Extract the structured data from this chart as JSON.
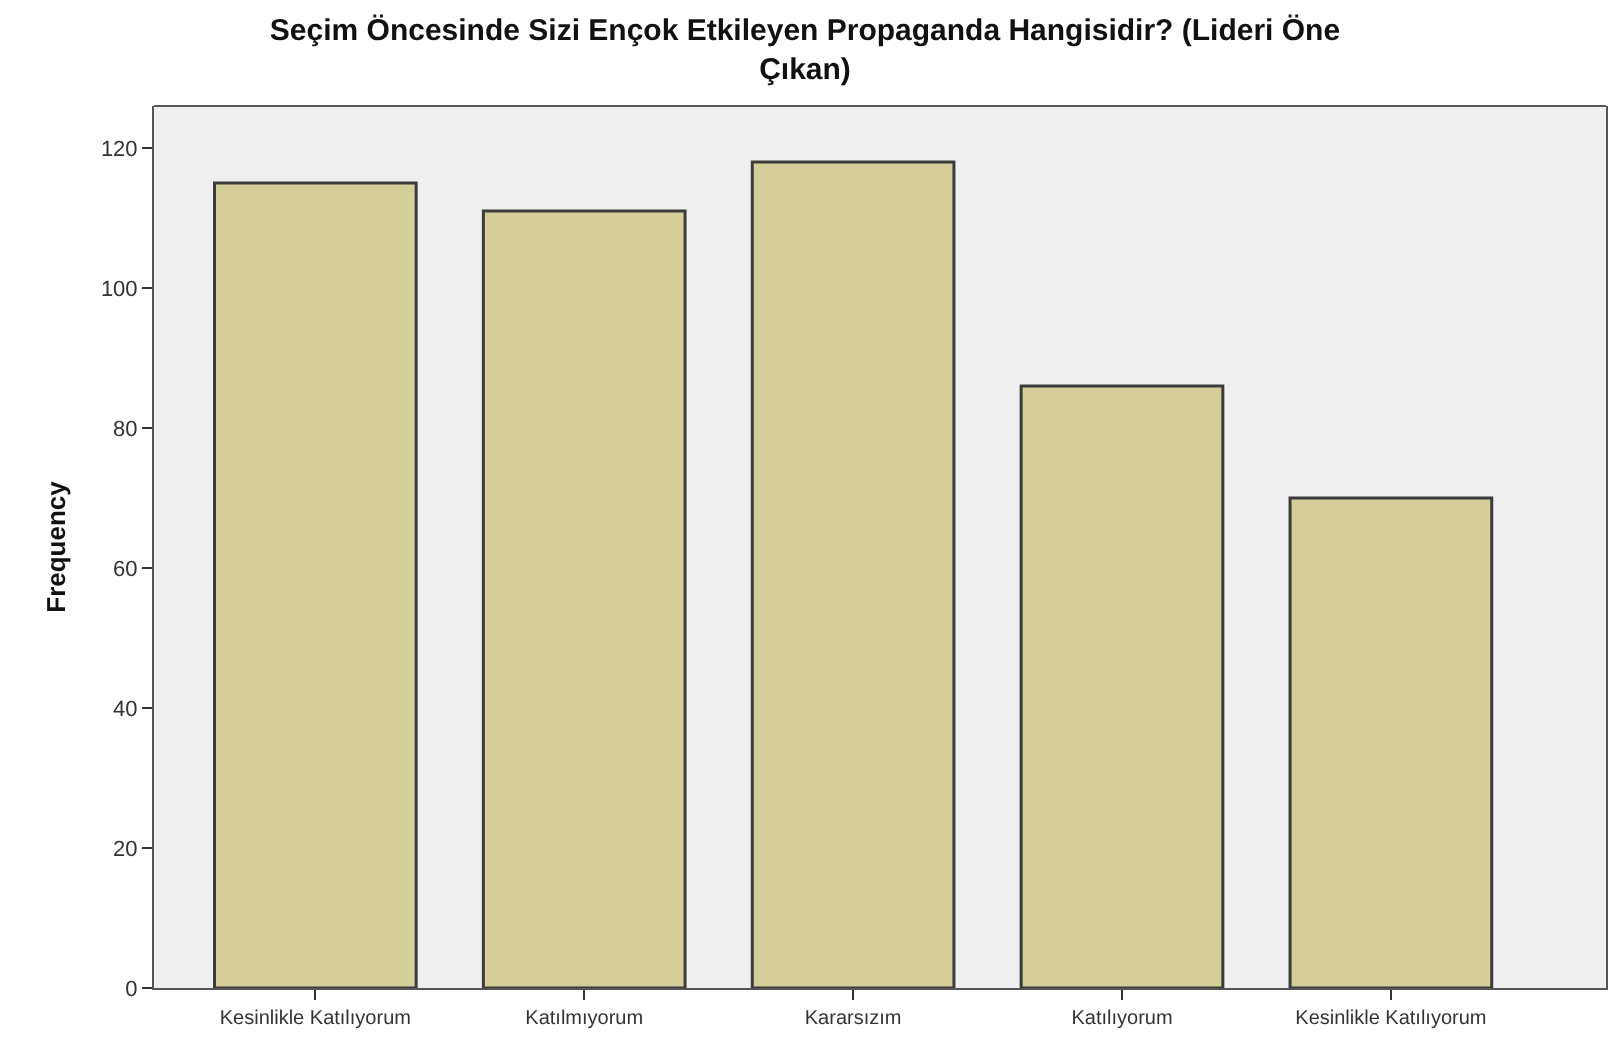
{
  "chart_data": {
    "type": "bar",
    "title": "Seçim Öncesinde Sizi Ençok Etkileyen Propaganda Hangisidir? (Lideri Öne\nÇıkan)",
    "categories": [
      "Kesinlikle Katılıyorum",
      "Katılmıyorum",
      "Kararsızım",
      "Katılıyorum",
      "Kesinlikle Katılıyorum"
    ],
    "values": [
      115,
      111,
      118,
      86,
      70
    ],
    "color": "#d4cf98",
    "ylabel": "Frequency",
    "ylim": [
      0,
      126
    ],
    "yticks": [
      0,
      20,
      40,
      60,
      80,
      100,
      120
    ]
  }
}
